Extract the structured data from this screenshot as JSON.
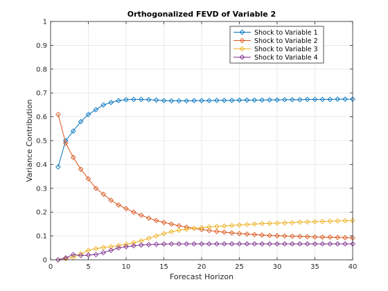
{
  "chart_data": {
    "type": "line",
    "title": "Orthogonalized FEVD of Variable 2",
    "xlabel": "Forecast Horizon",
    "ylabel": "Variance Contribution",
    "xlim": [
      0,
      40
    ],
    "ylim": [
      0,
      1
    ],
    "xticks": [
      "0",
      "5",
      "10",
      "15",
      "20",
      "25",
      "30",
      "35",
      "40"
    ],
    "yticks": [
      "0",
      "0.1",
      "0.2",
      "0.3",
      "0.4",
      "0.5",
      "0.6",
      "0.7",
      "0.8",
      "0.9",
      "1"
    ],
    "grid": true,
    "legend_position": "top-right",
    "marker": "diamond",
    "x": [
      1,
      2,
      3,
      4,
      5,
      6,
      7,
      8,
      9,
      10,
      11,
      12,
      13,
      14,
      15,
      16,
      17,
      18,
      19,
      20,
      21,
      22,
      23,
      24,
      25,
      26,
      27,
      28,
      29,
      30,
      31,
      32,
      33,
      34,
      35,
      36,
      37,
      38,
      39,
      40
    ],
    "series": [
      {
        "name": "Shock to Variable 1",
        "color": "#0072BD",
        "values": [
          0.39,
          0.5,
          0.54,
          0.58,
          0.61,
          0.63,
          0.65,
          0.66,
          0.668,
          0.672,
          0.673,
          0.673,
          0.672,
          0.67,
          0.668,
          0.667,
          0.667,
          0.667,
          0.668,
          0.668,
          0.668,
          0.669,
          0.669,
          0.669,
          0.67,
          0.67,
          0.67,
          0.67,
          0.671,
          0.671,
          0.672,
          0.672,
          0.672,
          0.673,
          0.673,
          0.673,
          0.673,
          0.674,
          0.674,
          0.674
        ]
      },
      {
        "name": "Shock to Variable 2",
        "color": "#D95319",
        "values": [
          0.61,
          0.49,
          0.43,
          0.38,
          0.34,
          0.3,
          0.275,
          0.25,
          0.23,
          0.215,
          0.2,
          0.187,
          0.175,
          0.165,
          0.157,
          0.15,
          0.143,
          0.137,
          0.132,
          0.127,
          0.123,
          0.119,
          0.116,
          0.113,
          0.11,
          0.108,
          0.106,
          0.104,
          0.102,
          0.101,
          0.1,
          0.099,
          0.098,
          0.097,
          0.096,
          0.095,
          0.095,
          0.094,
          0.093,
          0.092
        ]
      },
      {
        "name": "Shock to Variable 3",
        "color": "#EDB120",
        "values": [
          0.0,
          0.005,
          0.01,
          0.025,
          0.04,
          0.047,
          0.052,
          0.055,
          0.06,
          0.065,
          0.072,
          0.08,
          0.09,
          0.1,
          0.11,
          0.118,
          0.124,
          0.128,
          0.132,
          0.135,
          0.138,
          0.14,
          0.142,
          0.144,
          0.146,
          0.148,
          0.15,
          0.152,
          0.153,
          0.154,
          0.155,
          0.156,
          0.158,
          0.159,
          0.16,
          0.161,
          0.162,
          0.163,
          0.164,
          0.165
        ]
      },
      {
        "name": "Shock to Variable 4",
        "color": "#7E2F8E",
        "values": [
          0.0,
          0.008,
          0.022,
          0.018,
          0.02,
          0.022,
          0.03,
          0.04,
          0.05,
          0.055,
          0.059,
          0.062,
          0.064,
          0.065,
          0.066,
          0.067,
          0.067,
          0.067,
          0.067,
          0.067,
          0.067,
          0.067,
          0.067,
          0.067,
          0.067,
          0.067,
          0.067,
          0.067,
          0.067,
          0.067,
          0.067,
          0.067,
          0.067,
          0.067,
          0.067,
          0.067,
          0.067,
          0.067,
          0.067,
          0.067
        ]
      }
    ]
  }
}
